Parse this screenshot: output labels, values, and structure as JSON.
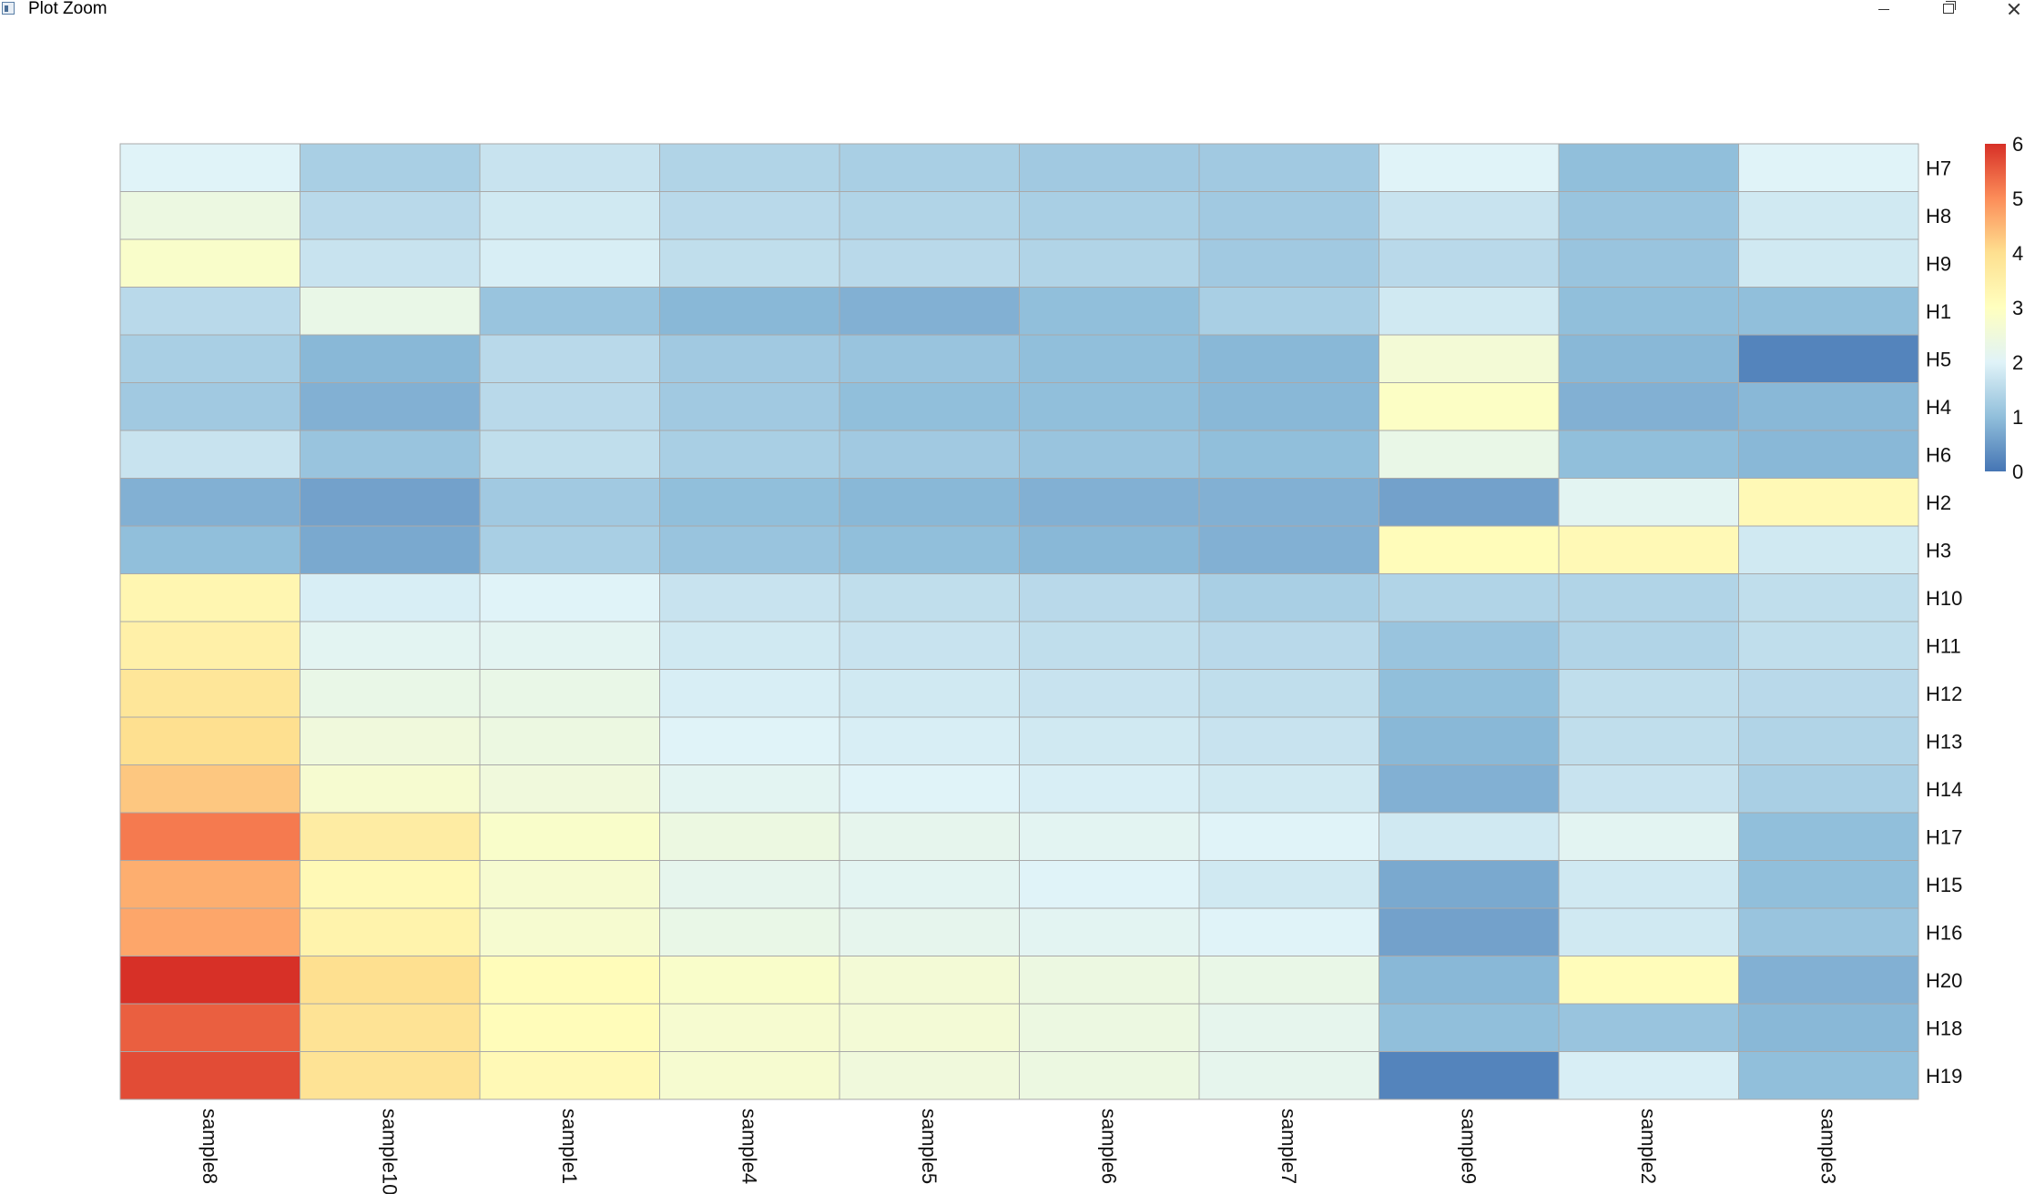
{
  "window": {
    "title": "Plot Zoom"
  },
  "chart_data": {
    "type": "heatmap",
    "title": "",
    "columns": [
      "sample8",
      "sample10",
      "sample1",
      "sample4",
      "sample5",
      "sample6",
      "sample7",
      "sample9",
      "sample2",
      "sample3"
    ],
    "rows": [
      "H7",
      "H8",
      "H9",
      "H1",
      "H5",
      "H4",
      "H6",
      "H2",
      "H3",
      "H10",
      "H11",
      "H12",
      "H13",
      "H14",
      "H17",
      "H15",
      "H16",
      "H20",
      "H18",
      "H19"
    ],
    "values": [
      [
        2.0,
        1.3,
        1.7,
        1.4,
        1.3,
        1.2,
        1.2,
        2.0,
        1.0,
        2.0
      ],
      [
        2.4,
        1.5,
        1.8,
        1.5,
        1.4,
        1.3,
        1.2,
        1.7,
        1.1,
        1.8
      ],
      [
        2.8,
        1.7,
        1.9,
        1.6,
        1.5,
        1.4,
        1.2,
        1.5,
        1.1,
        1.8
      ],
      [
        1.5,
        2.3,
        1.1,
        0.9,
        0.8,
        1.0,
        1.3,
        1.8,
        1.0,
        1.0
      ],
      [
        1.3,
        0.9,
        1.5,
        1.2,
        1.1,
        1.0,
        0.9,
        2.6,
        0.9,
        0.2
      ],
      [
        1.2,
        0.8,
        1.5,
        1.2,
        1.0,
        1.0,
        0.9,
        2.9,
        0.8,
        0.9
      ],
      [
        1.7,
        1.1,
        1.6,
        1.3,
        1.2,
        1.1,
        1.0,
        2.3,
        1.0,
        0.9
      ],
      [
        0.8,
        0.6,
        1.2,
        1.0,
        0.9,
        0.8,
        0.8,
        0.6,
        2.1,
        3.2
      ],
      [
        1.0,
        0.7,
        1.3,
        1.1,
        1.0,
        0.9,
        0.8,
        3.1,
        3.2,
        1.8
      ],
      [
        3.3,
        1.9,
        2.0,
        1.7,
        1.6,
        1.5,
        1.3,
        1.4,
        1.4,
        1.6
      ],
      [
        3.5,
        2.1,
        2.1,
        1.8,
        1.7,
        1.6,
        1.5,
        1.1,
        1.4,
        1.6
      ],
      [
        3.8,
        2.3,
        2.3,
        1.9,
        1.8,
        1.7,
        1.6,
        1.0,
        1.6,
        1.5
      ],
      [
        4.0,
        2.5,
        2.4,
        2.0,
        1.9,
        1.8,
        1.7,
        0.9,
        1.6,
        1.4
      ],
      [
        4.3,
        2.7,
        2.5,
        2.1,
        2.0,
        1.9,
        1.8,
        0.8,
        1.7,
        1.3
      ],
      [
        5.2,
        3.6,
        2.8,
        2.4,
        2.2,
        2.1,
        2.0,
        1.8,
        2.1,
        1.0
      ],
      [
        4.6,
        3.2,
        2.7,
        2.2,
        2.1,
        2.0,
        1.8,
        0.7,
        1.8,
        1.0
      ],
      [
        4.7,
        3.4,
        2.7,
        2.3,
        2.2,
        2.1,
        2.0,
        0.6,
        1.8,
        1.1
      ],
      [
        6.0,
        4.0,
        3.1,
        2.8,
        2.6,
        2.4,
        2.3,
        0.9,
        3.1,
        0.8
      ],
      [
        5.5,
        3.9,
        3.1,
        2.7,
        2.6,
        2.4,
        2.2,
        1.0,
        1.1,
        0.9
      ],
      [
        5.7,
        3.9,
        3.2,
        2.7,
        2.5,
        2.4,
        2.2,
        0.2,
        1.9,
        1.0
      ]
    ],
    "color_scale": {
      "min": 0,
      "max": 6,
      "stops": [
        "#4575b4",
        "#91bfdb",
        "#e0f3f8",
        "#ffffbf",
        "#fee090",
        "#fc8d59",
        "#d73027"
      ]
    },
    "legend": {
      "ticks": [
        "6",
        "5",
        "4",
        "3",
        "2",
        "1",
        "0"
      ],
      "placement": "right"
    },
    "cell_border_color": "#a9a9a9",
    "xlabel": "",
    "ylabel": ""
  }
}
